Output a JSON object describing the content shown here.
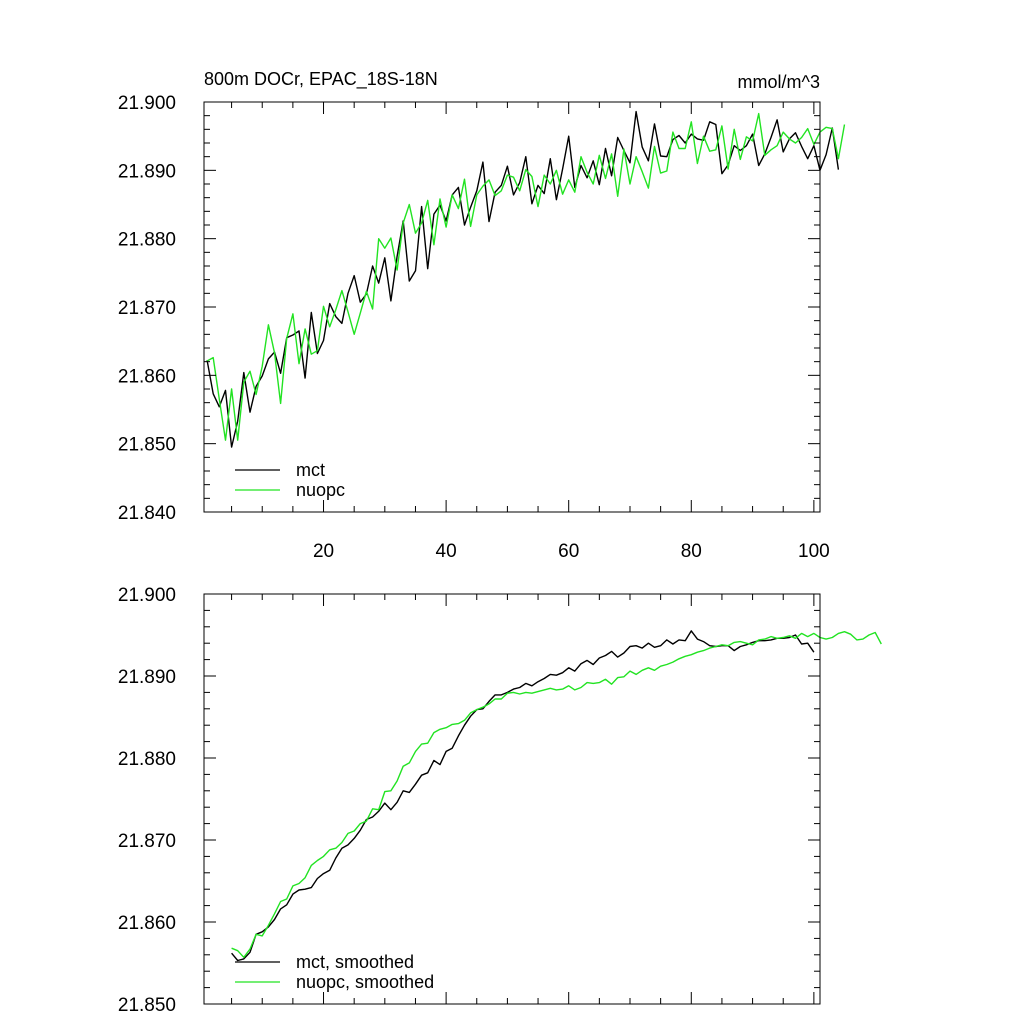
{
  "colors": {
    "mct": "#000000",
    "nuopc": "#22e322",
    "axis": "#000000",
    "background": "#ffffff"
  },
  "chart_data": [
    {
      "type": "line",
      "title": "800m DOCr, EPAC_18S-18N",
      "units": "mmol/m^3",
      "xlabel": "",
      "ylabel": "",
      "xlim": [
        0.5,
        101
      ],
      "ylim": [
        21.84,
        21.9
      ],
      "xticks": [
        "20",
        "40",
        "60",
        "80",
        "100"
      ],
      "xtick_values": [
        20,
        40,
        60,
        80,
        100
      ],
      "yticks": [
        "21.840",
        "21.850",
        "21.860",
        "21.870",
        "21.880",
        "21.890",
        "21.900"
      ],
      "ytick_values": [
        21.84,
        21.85,
        21.86,
        21.87,
        21.88,
        21.89,
        21.9
      ],
      "grid": false,
      "legend": "bottom-left",
      "x_start": 1,
      "series": [
        {
          "name": "mct",
          "color": "#000000",
          "values": [
            21.8622,
            21.8573,
            21.8554,
            21.8578,
            21.8495,
            21.8533,
            21.8604,
            21.8546,
            21.8584,
            21.8599,
            21.8624,
            21.8634,
            21.8603,
            21.8655,
            21.8659,
            21.8665,
            21.8596,
            21.8692,
            21.8632,
            21.8651,
            21.8705,
            21.8686,
            21.8676,
            21.872,
            21.8746,
            21.8707,
            21.8719,
            21.876,
            21.8735,
            21.8772,
            21.8709,
            21.8774,
            21.8826,
            21.8738,
            21.8753,
            21.8847,
            21.8756,
            21.8836,
            21.8849,
            21.8826,
            21.8864,
            21.8875,
            21.882,
            21.8846,
            21.887,
            21.8912,
            21.8825,
            21.8868,
            21.8878,
            21.8906,
            21.8864,
            21.8882,
            21.892,
            21.8851,
            21.8878,
            21.8866,
            21.8917,
            21.8857,
            21.8902,
            21.895,
            21.8875,
            21.8907,
            21.8889,
            21.8914,
            21.8879,
            21.8932,
            21.8892,
            21.8948,
            21.8929,
            21.8911,
            21.8986,
            21.8934,
            21.8914,
            21.8968,
            21.8921,
            21.892,
            21.8945,
            21.8951,
            21.894,
            21.8953,
            21.8946,
            21.8944,
            21.8971,
            21.8967,
            21.8895,
            21.8908,
            21.8936,
            21.8929,
            21.8936,
            21.8953,
            21.8907,
            21.8924,
            21.8948,
            21.8974,
            21.8927,
            21.8946,
            21.8955,
            21.8935,
            21.8917,
            21.8936,
            21.89,
            21.8923,
            21.8962,
            21.8901
          ]
        },
        {
          "name": "nuopc",
          "color": "#22e322",
          "values": [
            21.8621,
            21.8626,
            21.8565,
            21.8505,
            21.858,
            21.8505,
            21.859,
            21.8606,
            21.8572,
            21.8613,
            21.8674,
            21.8633,
            21.8559,
            21.8654,
            21.869,
            21.8617,
            21.8668,
            21.8631,
            21.8636,
            21.8701,
            21.8671,
            21.8696,
            21.8724,
            21.8693,
            21.866,
            21.8691,
            21.8723,
            21.8697,
            21.88,
            21.8786,
            21.8801,
            21.8754,
            21.8823,
            21.885,
            21.8808,
            21.8823,
            21.8856,
            21.8791,
            21.8858,
            21.8817,
            21.8864,
            21.8844,
            21.8887,
            21.8818,
            21.8864,
            21.8877,
            21.8886,
            21.8863,
            21.887,
            21.8893,
            21.889,
            21.887,
            21.8901,
            21.8891,
            21.8847,
            21.8893,
            21.888,
            21.89,
            21.8865,
            21.8886,
            21.8868,
            21.892,
            21.8897,
            21.888,
            21.8922,
            21.8888,
            21.8924,
            21.8862,
            21.8931,
            21.888,
            21.892,
            21.8898,
            21.8874,
            21.8935,
            21.8896,
            21.8899,
            21.8956,
            21.8932,
            21.8932,
            21.8971,
            21.891,
            21.895,
            21.8928,
            21.893,
            21.8965,
            21.8902,
            21.896,
            21.8916,
            21.8949,
            21.8943,
            21.8983,
            21.8922,
            21.893,
            21.8936,
            21.8956,
            21.8946,
            21.894,
            21.8948,
            21.8961,
            21.8938,
            21.8956,
            21.8963,
            21.8961,
            21.8917,
            21.8967
          ]
        }
      ]
    },
    {
      "type": "line",
      "title": "",
      "xlabel": "",
      "ylabel": "",
      "xlim": [
        0.5,
        101
      ],
      "ylim": [
        21.85,
        21.9
      ],
      "xticks": [],
      "xtick_values": [
        20,
        40,
        60,
        80,
        100
      ],
      "yticks": [
        "21.850",
        "21.860",
        "21.870",
        "21.880",
        "21.890",
        "21.900"
      ],
      "ytick_values": [
        21.85,
        21.86,
        21.87,
        21.88,
        21.89,
        21.9
      ],
      "grid": false,
      "legend": "bottom-left",
      "x_start": 5,
      "series": [
        {
          "name": "mct, smoothed",
          "color": "#000000",
          "values": [
            21.8562,
            21.8553,
            21.8555,
            21.8563,
            21.8585,
            21.8588,
            21.8594,
            21.8603,
            21.8616,
            21.8621,
            21.8634,
            21.8639,
            21.864,
            21.8642,
            21.8653,
            21.8659,
            21.8663,
            21.8678,
            21.869,
            21.8694,
            21.8702,
            21.8712,
            21.8725,
            21.8728,
            21.8735,
            21.8745,
            21.8737,
            21.8746,
            21.876,
            21.8758,
            21.8768,
            21.8779,
            21.8782,
            21.8797,
            21.8792,
            21.8808,
            21.8812,
            21.8827,
            21.884,
            21.8851,
            21.8859,
            21.886,
            21.8869,
            21.8877,
            21.8877,
            21.888,
            21.8884,
            21.8886,
            21.8891,
            21.8888,
            21.8893,
            21.8897,
            21.8902,
            21.8901,
            21.8904,
            21.891,
            21.8906,
            21.8915,
            21.8919,
            21.8914,
            21.8922,
            21.8925,
            21.893,
            21.8923,
            21.8928,
            21.8936,
            21.8937,
            21.8934,
            21.894,
            21.8935,
            21.8937,
            21.8944,
            21.8939,
            21.8944,
            21.8943,
            21.8955,
            21.8945,
            21.8942,
            21.8937,
            21.8936,
            21.8937,
            21.8937,
            21.8931,
            21.8936,
            21.8938,
            21.8941,
            21.8943,
            21.8943,
            21.8944,
            21.8946,
            21.8946,
            21.8947,
            21.895,
            21.8939,
            21.894,
            21.8929
          ]
        },
        {
          "name": "nuopc, smoothed",
          "color": "#22e322",
          "values": [
            21.8568,
            21.8565,
            21.8557,
            21.8567,
            21.8585,
            21.8583,
            21.8596,
            21.861,
            21.8625,
            21.8628,
            21.8644,
            21.8647,
            21.8654,
            21.8669,
            21.8675,
            21.868,
            21.8688,
            21.869,
            21.8697,
            21.8708,
            21.8711,
            21.872,
            21.8723,
            21.8738,
            21.8737,
            21.8759,
            21.876,
            21.8772,
            21.879,
            21.8794,
            21.8808,
            21.8817,
            21.8818,
            21.8831,
            21.8835,
            21.8837,
            21.8841,
            21.8842,
            21.8846,
            21.8855,
            21.8859,
            21.8862,
            21.8866,
            21.8872,
            21.8872,
            21.8879,
            21.888,
            21.8878,
            21.888,
            21.8879,
            21.8881,
            21.8883,
            21.8885,
            21.8883,
            21.8884,
            21.8888,
            21.8883,
            21.8886,
            21.8892,
            21.8891,
            21.8892,
            21.8896,
            21.889,
            21.8898,
            21.8899,
            21.8906,
            21.8902,
            21.8907,
            21.891,
            21.8907,
            21.8912,
            21.8914,
            21.8917,
            21.8921,
            21.8924,
            21.8926,
            21.8929,
            21.8931,
            21.8934,
            21.8936,
            21.8938,
            21.8937,
            21.8941,
            21.8942,
            21.894,
            21.8938,
            21.8944,
            21.8945,
            21.8948,
            21.8946,
            21.8947,
            21.8949,
            21.8946,
            21.8952,
            21.8948,
            21.8952,
            21.8947,
            21.8945,
            21.8947,
            21.8952,
            21.8954,
            21.8951,
            21.8944,
            21.8945,
            21.895,
            21.8953,
            21.8939
          ]
        }
      ]
    }
  ]
}
